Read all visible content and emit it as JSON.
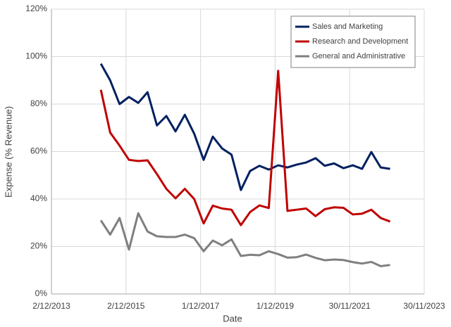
{
  "chart_data": {
    "type": "line",
    "x_label": "Date",
    "y_label": "Expense (% Revenue)",
    "x": [
      "2015-03-31",
      "2015-06-30",
      "2015-09-30",
      "2015-12-31",
      "2016-03-31",
      "2016-06-30",
      "2016-09-30",
      "2016-12-31",
      "2017-03-31",
      "2017-06-30",
      "2017-09-30",
      "2017-12-31",
      "2018-03-31",
      "2018-06-30",
      "2018-09-30",
      "2018-12-31",
      "2019-03-31",
      "2019-06-30",
      "2019-09-30",
      "2019-12-31",
      "2020-03-31",
      "2020-06-30",
      "2020-09-30",
      "2020-12-31",
      "2021-03-31",
      "2021-06-30",
      "2021-09-30",
      "2021-12-31",
      "2022-03-31",
      "2022-06-30",
      "2022-09-30",
      "2022-12-31"
    ],
    "series": [
      {
        "name": "Sales and Marketing",
        "color": "#002060",
        "values": [
          97,
          90,
          80,
          83,
          80.5,
          85,
          71,
          75,
          68.5,
          75.5,
          67.5,
          56.5,
          66.3,
          61.3,
          58.7,
          43.8,
          51.8,
          54,
          52.4,
          54.2,
          53.3,
          54.5,
          55.4,
          57.2,
          54,
          55,
          53,
          54.2,
          52.7,
          59.8,
          53.3,
          52.7
        ]
      },
      {
        "name": "Research and Development",
        "color": "#c00000",
        "values": [
          86,
          68,
          62.5,
          56.5,
          56,
          56.3,
          50.5,
          44.3,
          40.3,
          44.3,
          40,
          29.7,
          37.2,
          36,
          35.5,
          29,
          34.5,
          37.3,
          36.2,
          94,
          35,
          35.5,
          36,
          32.8,
          35.7,
          36.5,
          36.3,
          33.5,
          33.8,
          35.5,
          32,
          30.5
        ]
      },
      {
        "name": "General and Administrative",
        "color": "#7f7f7f",
        "values": [
          31,
          25,
          32,
          18.7,
          34,
          26.3,
          24.3,
          24,
          24,
          25,
          23.5,
          18,
          22.5,
          20.5,
          23,
          16,
          16.5,
          16.3,
          18,
          16.8,
          15.3,
          15.5,
          16.6,
          15.2,
          14.2,
          14.5,
          14.3,
          13.4,
          12.8,
          13.5,
          11.7,
          12.2
        ]
      }
    ],
    "xlim": [
      "2013-12-02",
      "2023-11-30"
    ],
    "xticks": [
      {
        "value": "2013-12-02",
        "label": "2/12/2013"
      },
      {
        "value": "2015-12-02",
        "label": "2/12/2015"
      },
      {
        "value": "2017-12-01",
        "label": "1/12/2017"
      },
      {
        "value": "2019-12-01",
        "label": "1/12/2019"
      },
      {
        "value": "2021-11-30",
        "label": "30/11/2021"
      },
      {
        "value": "2023-11-30",
        "label": "30/11/2023"
      }
    ],
    "ylim": [
      0,
      120
    ],
    "yticks": [
      {
        "value": 0,
        "label": "0%"
      },
      {
        "value": 20,
        "label": "20%"
      },
      {
        "value": 40,
        "label": "40%"
      },
      {
        "value": 60,
        "label": "60%"
      },
      {
        "value": 80,
        "label": "80%"
      },
      {
        "value": 100,
        "label": "100%"
      },
      {
        "value": 120,
        "label": "120%"
      }
    ],
    "grid": true,
    "legend": "upper right"
  }
}
